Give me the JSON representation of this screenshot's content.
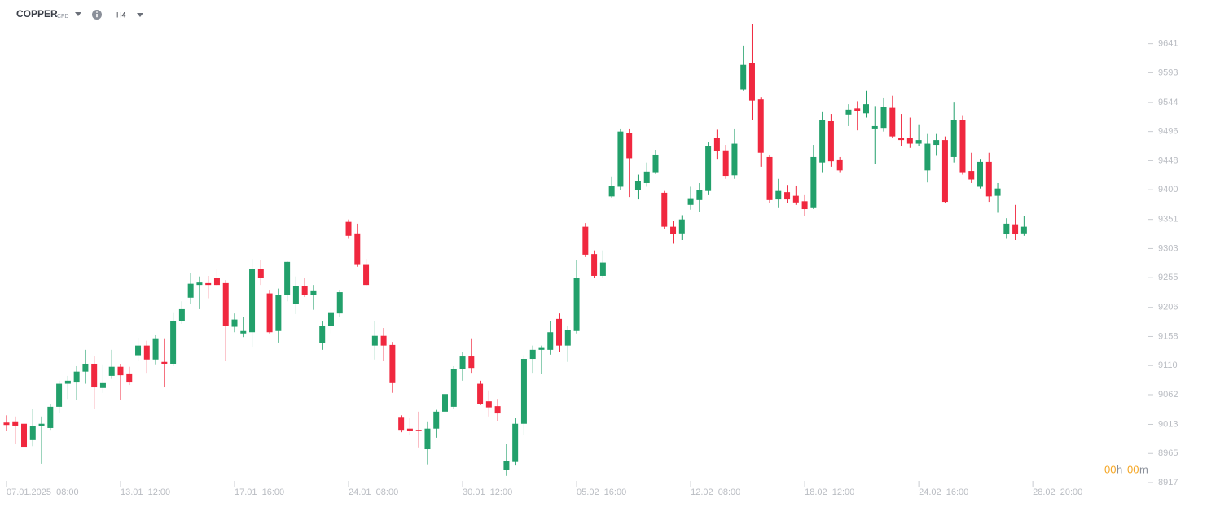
{
  "header": {
    "symbol": "COPPER",
    "instrument_type": "CFD",
    "timeframe": "H4"
  },
  "countdown": {
    "hours": "00",
    "hours_unit": "h",
    "minutes": "00",
    "minutes_unit": "m"
  },
  "chart_data": {
    "type": "candlestick",
    "up_color": "#22a06b",
    "down_color": "#f0283f",
    "grid": false,
    "x": [
      0,
      1,
      2,
      3,
      4,
      5,
      6,
      7,
      8,
      9,
      10,
      11,
      12,
      13,
      14,
      15,
      16,
      17,
      18,
      19,
      20,
      21,
      22,
      23,
      24,
      25,
      26,
      27,
      28,
      29,
      30,
      31,
      32,
      33,
      34,
      35,
      36,
      37,
      38,
      39,
      40,
      41,
      42,
      43,
      44,
      45,
      46,
      47,
      48,
      49,
      50,
      51,
      52,
      53,
      54,
      55,
      56,
      57,
      58,
      59,
      60,
      61,
      62,
      63,
      64,
      65,
      66,
      67,
      68,
      69,
      70,
      71,
      72,
      73,
      74,
      75,
      76,
      77,
      78,
      79,
      80,
      81,
      82,
      83,
      84,
      85,
      86,
      87,
      88,
      89,
      90,
      91,
      92,
      93,
      94,
      95,
      96,
      97,
      98,
      99,
      100,
      101,
      102,
      103,
      104,
      105,
      106,
      107,
      108,
      109,
      110,
      111,
      112,
      113,
      114,
      115,
      116
    ],
    "open": [
      9016,
      9018,
      9014,
      8987,
      9010,
      9007,
      9042,
      9080,
      9082,
      9100,
      9113,
      9073,
      9093,
      9108,
      9097,
      9127,
      9143,
      9120,
      9116,
      9113,
      9183,
      9222,
      9243,
      9246,
      9255,
      9246,
      9174,
      9163,
      9165,
      9269,
      9229,
      9167,
      9226,
      9212,
      9241,
      9227,
      9147,
      9176,
      9196,
      9347,
      9328,
      9276,
      9143,
      9159,
      9144,
      9024,
      9006,
      9004,
      8972,
      9006,
      9034,
      9042,
      9104,
      9125,
      9080,
      9051,
      9043,
      8938,
      8951,
      9014,
      9121,
      9136,
      9136,
      9187,
      9143,
      9167,
      9339,
      9294,
      9258,
      9389,
      9405,
      9494,
      9400,
      9411,
      9429,
      9395,
      9339,
      9328,
      9375,
      9383,
      9398,
      9485,
      9465,
      9424,
      9566,
      9609,
      9549,
      9454,
      9384,
      9396,
      9390,
      9381,
      9371,
      9445,
      9513,
      9450,
      9524,
      9534,
      9526,
      9501,
      9502,
      9535,
      9486,
      9485,
      9476,
      9432,
      9474,
      9482,
      9454,
      9515,
      9431,
      9405,
      9446,
      9390,
      9327,
      9343,
      9328
    ],
    "high": [
      9028,
      9026,
      9018,
      9039,
      9026,
      9046,
      9085,
      9093,
      9109,
      9136,
      9125,
      9112,
      9136,
      9113,
      9108,
      9156,
      9151,
      9160,
      9155,
      9198,
      9216,
      9262,
      9257,
      9258,
      9270,
      9251,
      9196,
      9190,
      9286,
      9284,
      9235,
      9237,
      9282,
      9257,
      9254,
      9243,
      9183,
      9206,
      9235,
      9351,
      9344,
      9286,
      9183,
      9172,
      9149,
      9028,
      9023,
      9034,
      9018,
      9037,
      9074,
      9109,
      9132,
      9155,
      9085,
      9069,
      9055,
      8981,
      9023,
      9127,
      9143,
      9143,
      9183,
      9196,
      9176,
      9284,
      9345,
      9300,
      9300,
      9422,
      9501,
      9501,
      9425,
      9445,
      9466,
      9398,
      9348,
      9358,
      9405,
      9411,
      9478,
      9499,
      9474,
      9501,
      9638,
      9673,
      9553,
      9458,
      9418,
      9408,
      9407,
      9391,
      9474,
      9528,
      9525,
      9454,
      9541,
      9546,
      9563,
      9538,
      9552,
      9555,
      9525,
      9519,
      9508,
      9492,
      9492,
      9488,
      9545,
      9523,
      9461,
      9451,
      9461,
      9411,
      9353,
      9375,
      9356
    ],
    "low": [
      9002,
      8981,
      8972,
      8977,
      8948,
      9004,
      9031,
      9055,
      9053,
      9080,
      9038,
      9065,
      9088,
      9053,
      9078,
      9118,
      9098,
      9112,
      9074,
      9109,
      9179,
      9212,
      9203,
      9221,
      9241,
      9118,
      9165,
      9157,
      9140,
      9243,
      9163,
      9148,
      9216,
      9195,
      9223,
      9202,
      9136,
      9163,
      9190,
      9319,
      9273,
      9241,
      9120,
      9118,
      9065,
      9000,
      8995,
      8975,
      8947,
      8991,
      9026,
      9039,
      9085,
      9098,
      9045,
      9026,
      9019,
      8928,
      8945,
      8995,
      9098,
      9096,
      9128,
      9133,
      9116,
      9163,
      9289,
      9254,
      9255,
      9387,
      9399,
      9388,
      9384,
      9405,
      9426,
      9335,
      9311,
      9317,
      9367,
      9364,
      9391,
      9451,
      9418,
      9418,
      9563,
      9515,
      9438,
      9378,
      9371,
      9378,
      9375,
      9356,
      9368,
      9429,
      9438,
      9429,
      9505,
      9498,
      9519,
      9442,
      9496,
      9485,
      9472,
      9469,
      9472,
      9412,
      9456,
      9378,
      9445,
      9425,
      9411,
      9402,
      9380,
      9362,
      9319,
      9317,
      9324
    ],
    "close": [
      9012,
      9011,
      8976,
      9010,
      9014,
      9042,
      9080,
      9085,
      9100,
      9113,
      9074,
      9081,
      9108,
      9094,
      9082,
      9143,
      9120,
      9155,
      9113,
      9184,
      9203,
      9245,
      9247,
      9243,
      9243,
      9175,
      9186,
      9167,
      9269,
      9255,
      9165,
      9227,
      9281,
      9241,
      9227,
      9234,
      9176,
      9198,
      9231,
      9324,
      9276,
      9243,
      9159,
      9143,
      9081,
      9004,
      9002,
      9002,
      9006,
      9034,
      9063,
      9104,
      9125,
      9106,
      9047,
      9041,
      9031,
      8952,
      9014,
      9121,
      9136,
      9139,
      9165,
      9143,
      9169,
      9255,
      9293,
      9258,
      9280,
      9406,
      9496,
      9452,
      9414,
      9430,
      9458,
      9339,
      9327,
      9351,
      9386,
      9399,
      9472,
      9464,
      9423,
      9476,
      9606,
      9547,
      9461,
      9383,
      9398,
      9384,
      9379,
      9368,
      9454,
      9515,
      9447,
      9432,
      9532,
      9530,
      9541,
      9505,
      9536,
      9488,
      9482,
      9476,
      9482,
      9476,
      9482,
      9380,
      9515,
      9429,
      9417,
      9446,
      9389,
      9402,
      9344,
      9327,
      9339
    ],
    "xlim": [
      -0.74,
      131.1
    ],
    "xticks": [
      {
        "value": 0,
        "label": "07.01.2025  08:00"
      },
      {
        "value": 13,
        "label": "13.01  12:00"
      },
      {
        "value": 26,
        "label": "17.01  16:00"
      },
      {
        "value": 39,
        "label": "24.01  08:00"
      },
      {
        "value": 52,
        "label": "30.01  12:00"
      },
      {
        "value": 65,
        "label": "05.02  16:00"
      },
      {
        "value": 78,
        "label": "12.02  08:00"
      },
      {
        "value": 91,
        "label": "18.02  12:00"
      },
      {
        "value": 104,
        "label": "24.02  16:00"
      },
      {
        "value": 117,
        "label": "28.02  20:00"
      }
    ],
    "ylim": [
      8917,
      9713
    ],
    "yticks": [
      8917,
      8965,
      9013,
      9062,
      9110,
      9158,
      9206,
      9255,
      9303,
      9351,
      9400,
      9448,
      9496,
      9544,
      9593,
      9641
    ]
  }
}
